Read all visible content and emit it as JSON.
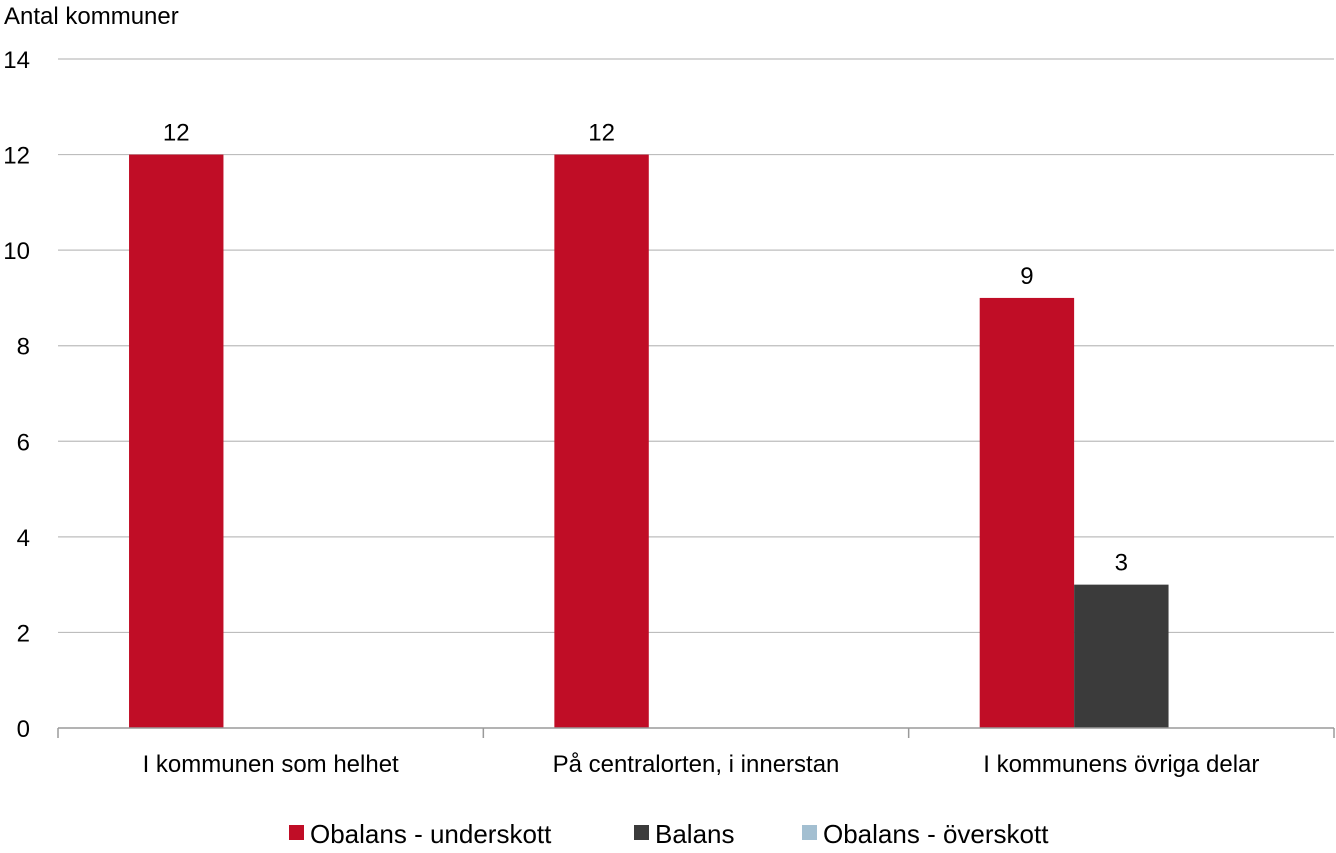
{
  "chart_data": {
    "type": "bar",
    "ylabel": "Antal kommuner",
    "ylim": [
      0,
      14
    ],
    "yticks": [
      0,
      2,
      4,
      6,
      8,
      10,
      12,
      14
    ],
    "grid": true,
    "legend_position": "bottom",
    "categories": [
      "I kommunen som helhet",
      "På centralorten, i innerstan",
      "I kommunens övriga delar"
    ],
    "series": [
      {
        "name": "Obalans - underskott",
        "color": "#c00d26",
        "values": [
          12,
          12,
          9
        ]
      },
      {
        "name": "Balans",
        "color": "#3b3b3b",
        "values": [
          0,
          0,
          3
        ]
      },
      {
        "name": "Obalans - överskott",
        "color": "#a3bfd1",
        "values": [
          0,
          0,
          0
        ]
      }
    ]
  }
}
